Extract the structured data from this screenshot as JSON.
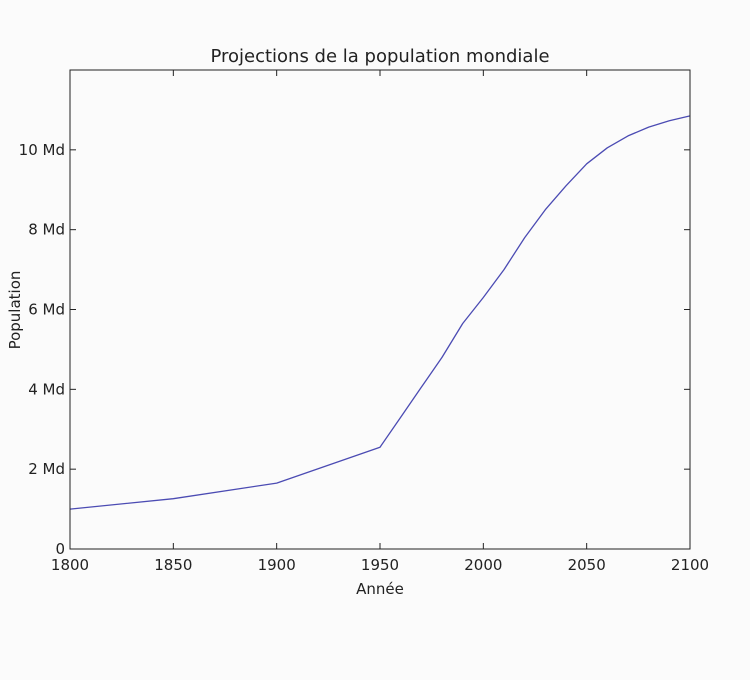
{
  "chart_data": {
    "type": "line",
    "title": "Projections de la population mondiale",
    "xlabel": "Année",
    "ylabel": "Population",
    "xlim": [
      1800,
      2100
    ],
    "ylim": [
      0,
      12
    ],
    "grid": false,
    "line_color": "#4b4bb3",
    "x_ticks": [
      1800,
      1850,
      1900,
      1950,
      2000,
      2050,
      2100
    ],
    "x_tick_labels": [
      "1800",
      "1850",
      "1900",
      "1950",
      "2000",
      "2050",
      "2100"
    ],
    "y_ticks": [
      0,
      2,
      4,
      6,
      8,
      10
    ],
    "y_tick_labels": [
      "0",
      "2 Md",
      "4 Md",
      "6 Md",
      "8 Md",
      "10 Md"
    ],
    "series": [
      {
        "x": [
          1800,
          1850,
          1900,
          1950,
          1960,
          1970,
          1980,
          1990,
          2000,
          2010,
          2020,
          2030,
          2040,
          2050,
          2060,
          2070,
          2080,
          2090,
          2100
        ],
        "y": [
          1.0,
          1.26,
          1.65,
          2.55,
          3.3,
          4.05,
          4.8,
          5.65,
          6.3,
          7.0,
          7.8,
          8.5,
          9.1,
          9.65,
          10.05,
          10.35,
          10.57,
          10.73,
          10.85
        ]
      }
    ]
  }
}
